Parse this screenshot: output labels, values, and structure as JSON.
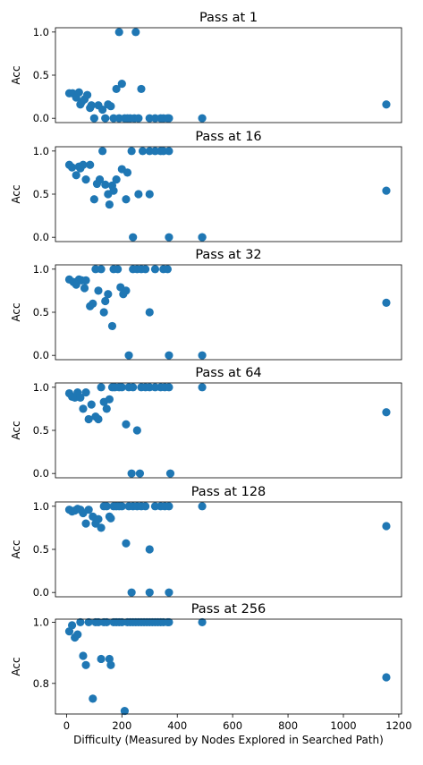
{
  "chart_data": [
    {
      "type": "scatter",
      "title": "Pass at 1",
      "ylabel": "Acc",
      "xlabel": "",
      "xlim": [
        -40,
        1210
      ],
      "ylim": [
        -0.05,
        1.05
      ],
      "yticks": [
        "0.0",
        "0.5",
        "1.0"
      ],
      "ytick_values": [
        0,
        0.5,
        1
      ],
      "xticks_visible": false,
      "color": "#1f77b4",
      "series": [
        {
          "x": [
            10,
            22,
            35,
            45,
            50,
            55,
            65,
            75,
            85,
            90,
            100,
            115,
            130,
            140,
            150,
            160,
            170,
            190,
            200,
            210,
            220,
            230,
            245,
            260,
            270,
            300,
            320,
            340,
            350,
            365,
            370,
            490,
            1155,
            250,
            190,
            180
          ],
          "y": [
            0.29,
            0.29,
            0.24,
            0.3,
            0.16,
            0.19,
            0.22,
            0.27,
            0.12,
            0.15,
            0.0,
            0.15,
            0.1,
            0.0,
            0.16,
            0.14,
            0.0,
            0.0,
            0.4,
            0.0,
            0.0,
            0.0,
            0.0,
            0.0,
            0.34,
            0.0,
            0.0,
            0.0,
            0.0,
            0.0,
            0.0,
            0.0,
            0.16,
            1.0,
            1.0,
            0.34
          ]
        }
      ]
    },
    {
      "type": "scatter",
      "title": "Pass at 16",
      "ylabel": "Acc",
      "xlabel": "",
      "xlim": [
        -40,
        1210
      ],
      "ylim": [
        -0.05,
        1.05
      ],
      "yticks": [
        "0.0",
        "0.5",
        "1.0"
      ],
      "ytick_values": [
        0,
        0.5,
        1
      ],
      "xticks_visible": false,
      "color": "#1f77b4",
      "series": [
        {
          "x": [
            10,
            20,
            35,
            45,
            50,
            60,
            70,
            85,
            100,
            110,
            120,
            130,
            140,
            150,
            155,
            165,
            170,
            180,
            200,
            215,
            220,
            235,
            260,
            275,
            300,
            320,
            340,
            350,
            370,
            490,
            1155,
            240,
            300,
            490,
            370
          ],
          "y": [
            0.84,
            0.81,
            0.72,
            0.82,
            0.8,
            0.84,
            0.67,
            0.84,
            0.44,
            0.62,
            0.67,
            1.0,
            0.61,
            0.5,
            0.38,
            0.6,
            0.54,
            0.67,
            0.79,
            0.44,
            0.75,
            1.0,
            0.5,
            1.0,
            1.0,
            1.0,
            1.0,
            1.0,
            1.0,
            0.0,
            0.54,
            0.0,
            0.5,
            0.0,
            0.0
          ]
        }
      ]
    },
    {
      "type": "scatter",
      "title": "Pass at 32",
      "ylabel": "Acc",
      "xlabel": "",
      "xlim": [
        -40,
        1210
      ],
      "ylim": [
        -0.05,
        1.05
      ],
      "yticks": [
        "0.0",
        "0.5",
        "1.0"
      ],
      "ytick_values": [
        0,
        0.5,
        1
      ],
      "xticks_visible": false,
      "color": "#1f77b4",
      "series": [
        {
          "x": [
            10,
            25,
            35,
            45,
            55,
            65,
            70,
            85,
            95,
            105,
            115,
            125,
            135,
            140,
            150,
            165,
            170,
            185,
            195,
            205,
            215,
            225,
            240,
            255,
            270,
            285,
            300,
            320,
            350,
            365,
            370,
            490,
            1155
          ],
          "y": [
            0.88,
            0.85,
            0.82,
            0.88,
            0.87,
            0.78,
            0.87,
            0.57,
            0.6,
            1.0,
            0.75,
            1.0,
            0.5,
            0.63,
            0.71,
            0.34,
            1.0,
            1.0,
            0.79,
            0.71,
            0.75,
            0.0,
            1.0,
            1.0,
            1.0,
            1.0,
            0.5,
            1.0,
            1.0,
            1.0,
            0.0,
            0.0,
            0.61
          ]
        }
      ]
    },
    {
      "type": "scatter",
      "title": "Pass at 64",
      "ylabel": "Acc",
      "xlabel": "",
      "xlim": [
        -40,
        1210
      ],
      "ylim": [
        -0.05,
        1.05
      ],
      "yticks": [
        "0.0",
        "0.5",
        "1.0"
      ],
      "ytick_values": [
        0,
        0.5,
        1
      ],
      "xticks_visible": false,
      "color": "#1f77b4",
      "series": [
        {
          "x": [
            10,
            20,
            30,
            40,
            50,
            60,
            70,
            80,
            90,
            105,
            115,
            125,
            135,
            145,
            155,
            165,
            175,
            190,
            200,
            215,
            225,
            240,
            255,
            270,
            285,
            300,
            320,
            340,
            355,
            370,
            490,
            1155,
            235,
            265,
            375
          ],
          "y": [
            0.93,
            0.89,
            0.88,
            0.94,
            0.88,
            0.75,
            0.94,
            0.63,
            0.8,
            0.66,
            0.63,
            1.0,
            0.83,
            0.75,
            0.86,
            1.0,
            1.0,
            1.0,
            1.0,
            0.57,
            1.0,
            1.0,
            0.5,
            1.0,
            1.0,
            1.0,
            1.0,
            1.0,
            1.0,
            1.0,
            1.0,
            0.71,
            0.0,
            0.0,
            0.0
          ]
        }
      ]
    },
    {
      "type": "scatter",
      "title": "Pass at 128",
      "ylabel": "Acc",
      "xlabel": "",
      "xlim": [
        -40,
        1210
      ],
      "ylim": [
        -0.05,
        1.05
      ],
      "yticks": [
        "0.0",
        "0.5",
        "1.0"
      ],
      "ytick_values": [
        0,
        0.5,
        1
      ],
      "xticks_visible": false,
      "color": "#1f77b4",
      "series": [
        {
          "x": [
            10,
            20,
            30,
            40,
            50,
            60,
            70,
            80,
            95,
            105,
            115,
            125,
            135,
            145,
            155,
            160,
            170,
            180,
            190,
            200,
            215,
            225,
            240,
            255,
            270,
            285,
            300,
            320,
            340,
            355,
            370,
            490,
            1155,
            235,
            300,
            370
          ],
          "y": [
            0.96,
            0.94,
            0.95,
            0.97,
            0.96,
            0.92,
            0.8,
            0.96,
            0.88,
            0.8,
            0.85,
            0.75,
            1.0,
            1.0,
            0.88,
            0.86,
            1.0,
            1.0,
            1.0,
            1.0,
            0.57,
            1.0,
            1.0,
            1.0,
            1.0,
            1.0,
            0.5,
            1.0,
            1.0,
            1.0,
            1.0,
            1.0,
            0.77,
            0.0,
            0.0,
            0.0
          ]
        }
      ]
    },
    {
      "type": "scatter",
      "title": "Pass at 256",
      "ylabel": "Acc",
      "xlabel": "Difficulty (Measured by Nodes Explored in Searched Path)",
      "xlim": [
        -40,
        1210
      ],
      "ylim": [
        0.7,
        1.01
      ],
      "yticks": [
        "0.8",
        "1.0"
      ],
      "ytick_values": [
        0.8,
        1.0
      ],
      "xticks": [
        "0",
        "200",
        "400",
        "600",
        "800",
        "1000",
        "1200"
      ],
      "xtick_values": [
        0,
        200,
        400,
        600,
        800,
        1000,
        1200
      ],
      "xticks_visible": true,
      "color": "#1f77b4",
      "series": [
        {
          "x": [
            10,
            20,
            30,
            40,
            50,
            60,
            70,
            80,
            95,
            105,
            115,
            125,
            135,
            145,
            155,
            160,
            170,
            180,
            190,
            200,
            210,
            220,
            230,
            240,
            250,
            260,
            270,
            280,
            290,
            300,
            310,
            320,
            330,
            340,
            350,
            365,
            370,
            490,
            1155
          ],
          "y": [
            0.97,
            0.99,
            0.95,
            0.96,
            1.0,
            0.89,
            0.86,
            1.0,
            0.75,
            1.0,
            1.0,
            0.88,
            1.0,
            1.0,
            0.88,
            0.86,
            1.0,
            1.0,
            1.0,
            1.0,
            0.71,
            1.0,
            1.0,
            1.0,
            1.0,
            1.0,
            1.0,
            1.0,
            1.0,
            1.0,
            1.0,
            1.0,
            1.0,
            1.0,
            1.0,
            1.0,
            1.0,
            1.0,
            0.82
          ]
        }
      ]
    }
  ]
}
